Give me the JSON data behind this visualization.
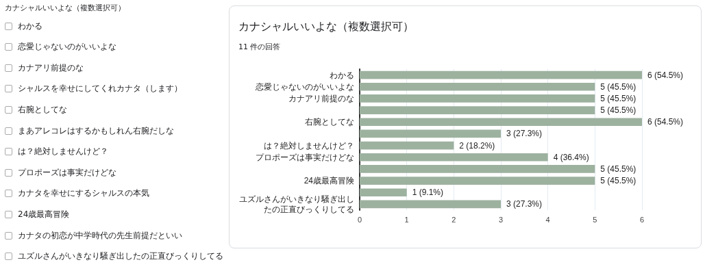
{
  "chart_data": [
    {
      "type": "other",
      "title": "カナシャルいいよな（複数選択可）",
      "annotations": [
        "わかる",
        "恋愛じゃないのがいいよな",
        "カナアリ前提のな",
        "シャルスを幸せにしてくれカナタ（します）",
        "右腕としてな",
        "まあアレコレはするかもしれん右腕だしな",
        "は？絶対しませんけど？",
        "プロポーズは事実だけどな",
        "カナタを幸せにするシャルスの本気",
        "24歳最高冒険",
        "カナタの初恋が中学時代の先生前提だといい",
        "ユズルさんがいきなり騒ぎ出したの正直びっくりしてる"
      ]
    },
    {
      "type": "bar",
      "orientation": "horizontal",
      "title": "カナシャルいいよな（複数選択可）",
      "subtitle": "11 件の回答",
      "categories": [
        "わかる",
        "恋愛じゃないのがいいよな",
        "カナアリ前提のな",
        null,
        "右腕としてな",
        null,
        "は？絶対しませんけど？",
        "プロポーズは事実だけどな",
        null,
        "24歳最高冒険",
        null,
        "ユズルさんがいきなり騒ぎ出したの正直びっくりしてる"
      ],
      "values": [
        6,
        5,
        5,
        5,
        6,
        3,
        2,
        4,
        5,
        5,
        1,
        3
      ],
      "value_labels": [
        "6 (54.5%)",
        "5 (45.5%)",
        "5 (45.5%)",
        "5 (45.5%)",
        "6 (54.5%)",
        "3 (27.3%)",
        "2 (18.2%)",
        "4 (36.4%)",
        "5 (45.5%)",
        "5 (45.5%)",
        "1 (9.1%)",
        "3 (27.3%)"
      ],
      "color": "#9db19f",
      "xlim": [
        0,
        6
      ],
      "xticks": [
        0,
        1,
        2,
        3,
        4,
        5,
        6
      ],
      "grid": "x"
    }
  ]
}
